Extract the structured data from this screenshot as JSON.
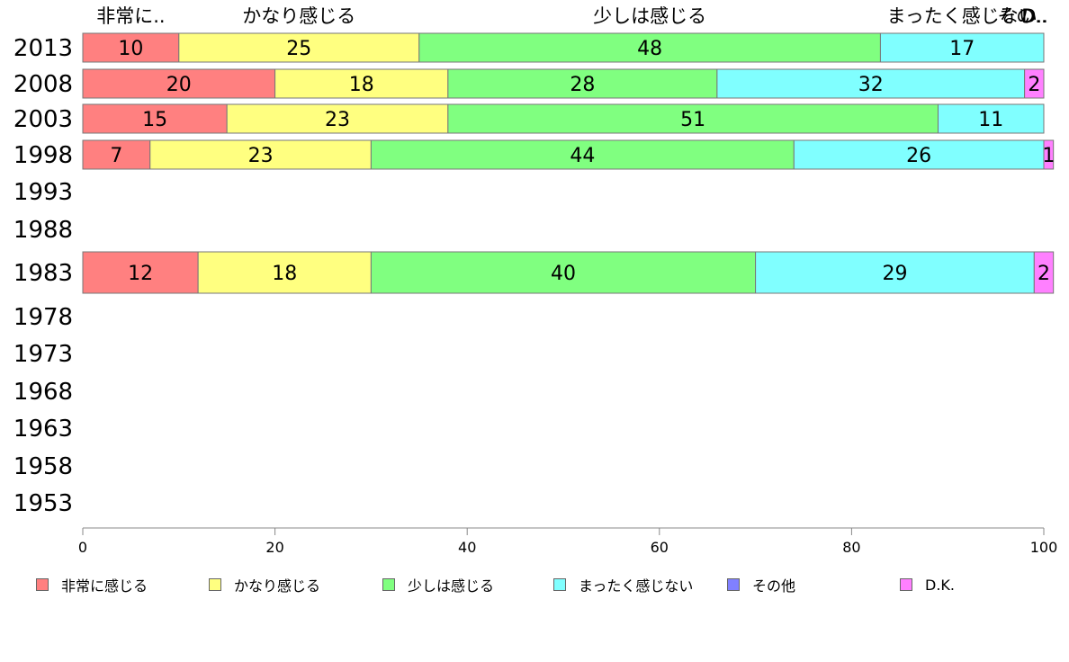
{
  "chart_data": {
    "type": "bar",
    "orientation": "horizontal",
    "stacked": true,
    "categories": [
      "2013",
      "2008",
      "2003",
      "1998",
      "1993",
      "1988",
      "1983",
      "1978",
      "1973",
      "1968",
      "1963",
      "1958",
      "1953"
    ],
    "series": [
      {
        "name": "非常に感じる",
        "color": "#ff8080",
        "values": [
          10,
          20,
          15,
          7,
          null,
          null,
          12,
          null,
          null,
          null,
          null,
          null,
          null
        ]
      },
      {
        "name": "かなり感じる",
        "color": "#ffff80",
        "values": [
          25,
          18,
          23,
          23,
          null,
          null,
          18,
          null,
          null,
          null,
          null,
          null,
          null
        ]
      },
      {
        "name": "少しは感じる",
        "color": "#80ff80",
        "values": [
          48,
          28,
          51,
          44,
          null,
          null,
          40,
          null,
          null,
          null,
          null,
          null,
          null
        ]
      },
      {
        "name": "まったく感じない",
        "color": "#80ffff",
        "values": [
          17,
          32,
          11,
          26,
          null,
          null,
          29,
          null,
          null,
          null,
          null,
          null,
          null
        ]
      },
      {
        "name": "その他",
        "color": "#8080ff",
        "values": [
          0,
          0,
          0,
          0,
          null,
          null,
          0,
          null,
          null,
          null,
          null,
          null,
          null
        ]
      },
      {
        "name": "D.K.",
        "color": "#ff80ff",
        "values": [
          0,
          2,
          0,
          1,
          null,
          null,
          2,
          null,
          null,
          null,
          null,
          null,
          null
        ]
      }
    ],
    "top_labels": [
      "非常に..",
      "かなり感じる",
      "少しは感じる",
      "まったく感じない",
      "その..",
      "D.."
    ],
    "xlim": [
      0,
      100
    ],
    "xticks": [
      "0",
      "20",
      "40",
      "60",
      "80",
      "100"
    ],
    "legend_position": "bottom",
    "grid": false
  }
}
